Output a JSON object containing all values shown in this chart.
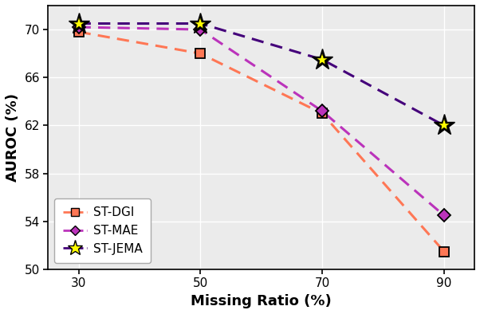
{
  "x": [
    30,
    50,
    70,
    90
  ],
  "st_dgi": [
    69.8,
    68.0,
    63.0,
    51.5
  ],
  "st_mae": [
    70.2,
    70.0,
    63.2,
    54.5
  ],
  "st_jema": [
    70.5,
    70.5,
    67.5,
    62.0
  ],
  "st_dgi_color": "#FF7755",
  "st_mae_color": "#BB33BB",
  "st_jema_color": "#44007A",
  "xlabel": "Missing Ratio (%)",
  "ylabel": "AUROC (%)",
  "ylim": [
    50,
    72
  ],
  "xlim": [
    25,
    95
  ],
  "xticks": [
    30,
    50,
    70,
    90
  ],
  "yticks": [
    50,
    54,
    58,
    62,
    66,
    70
  ],
  "legend_labels": [
    "ST-DGI",
    "ST-MAE",
    "ST-JEMA"
  ],
  "bg_color": "#ebebeb"
}
